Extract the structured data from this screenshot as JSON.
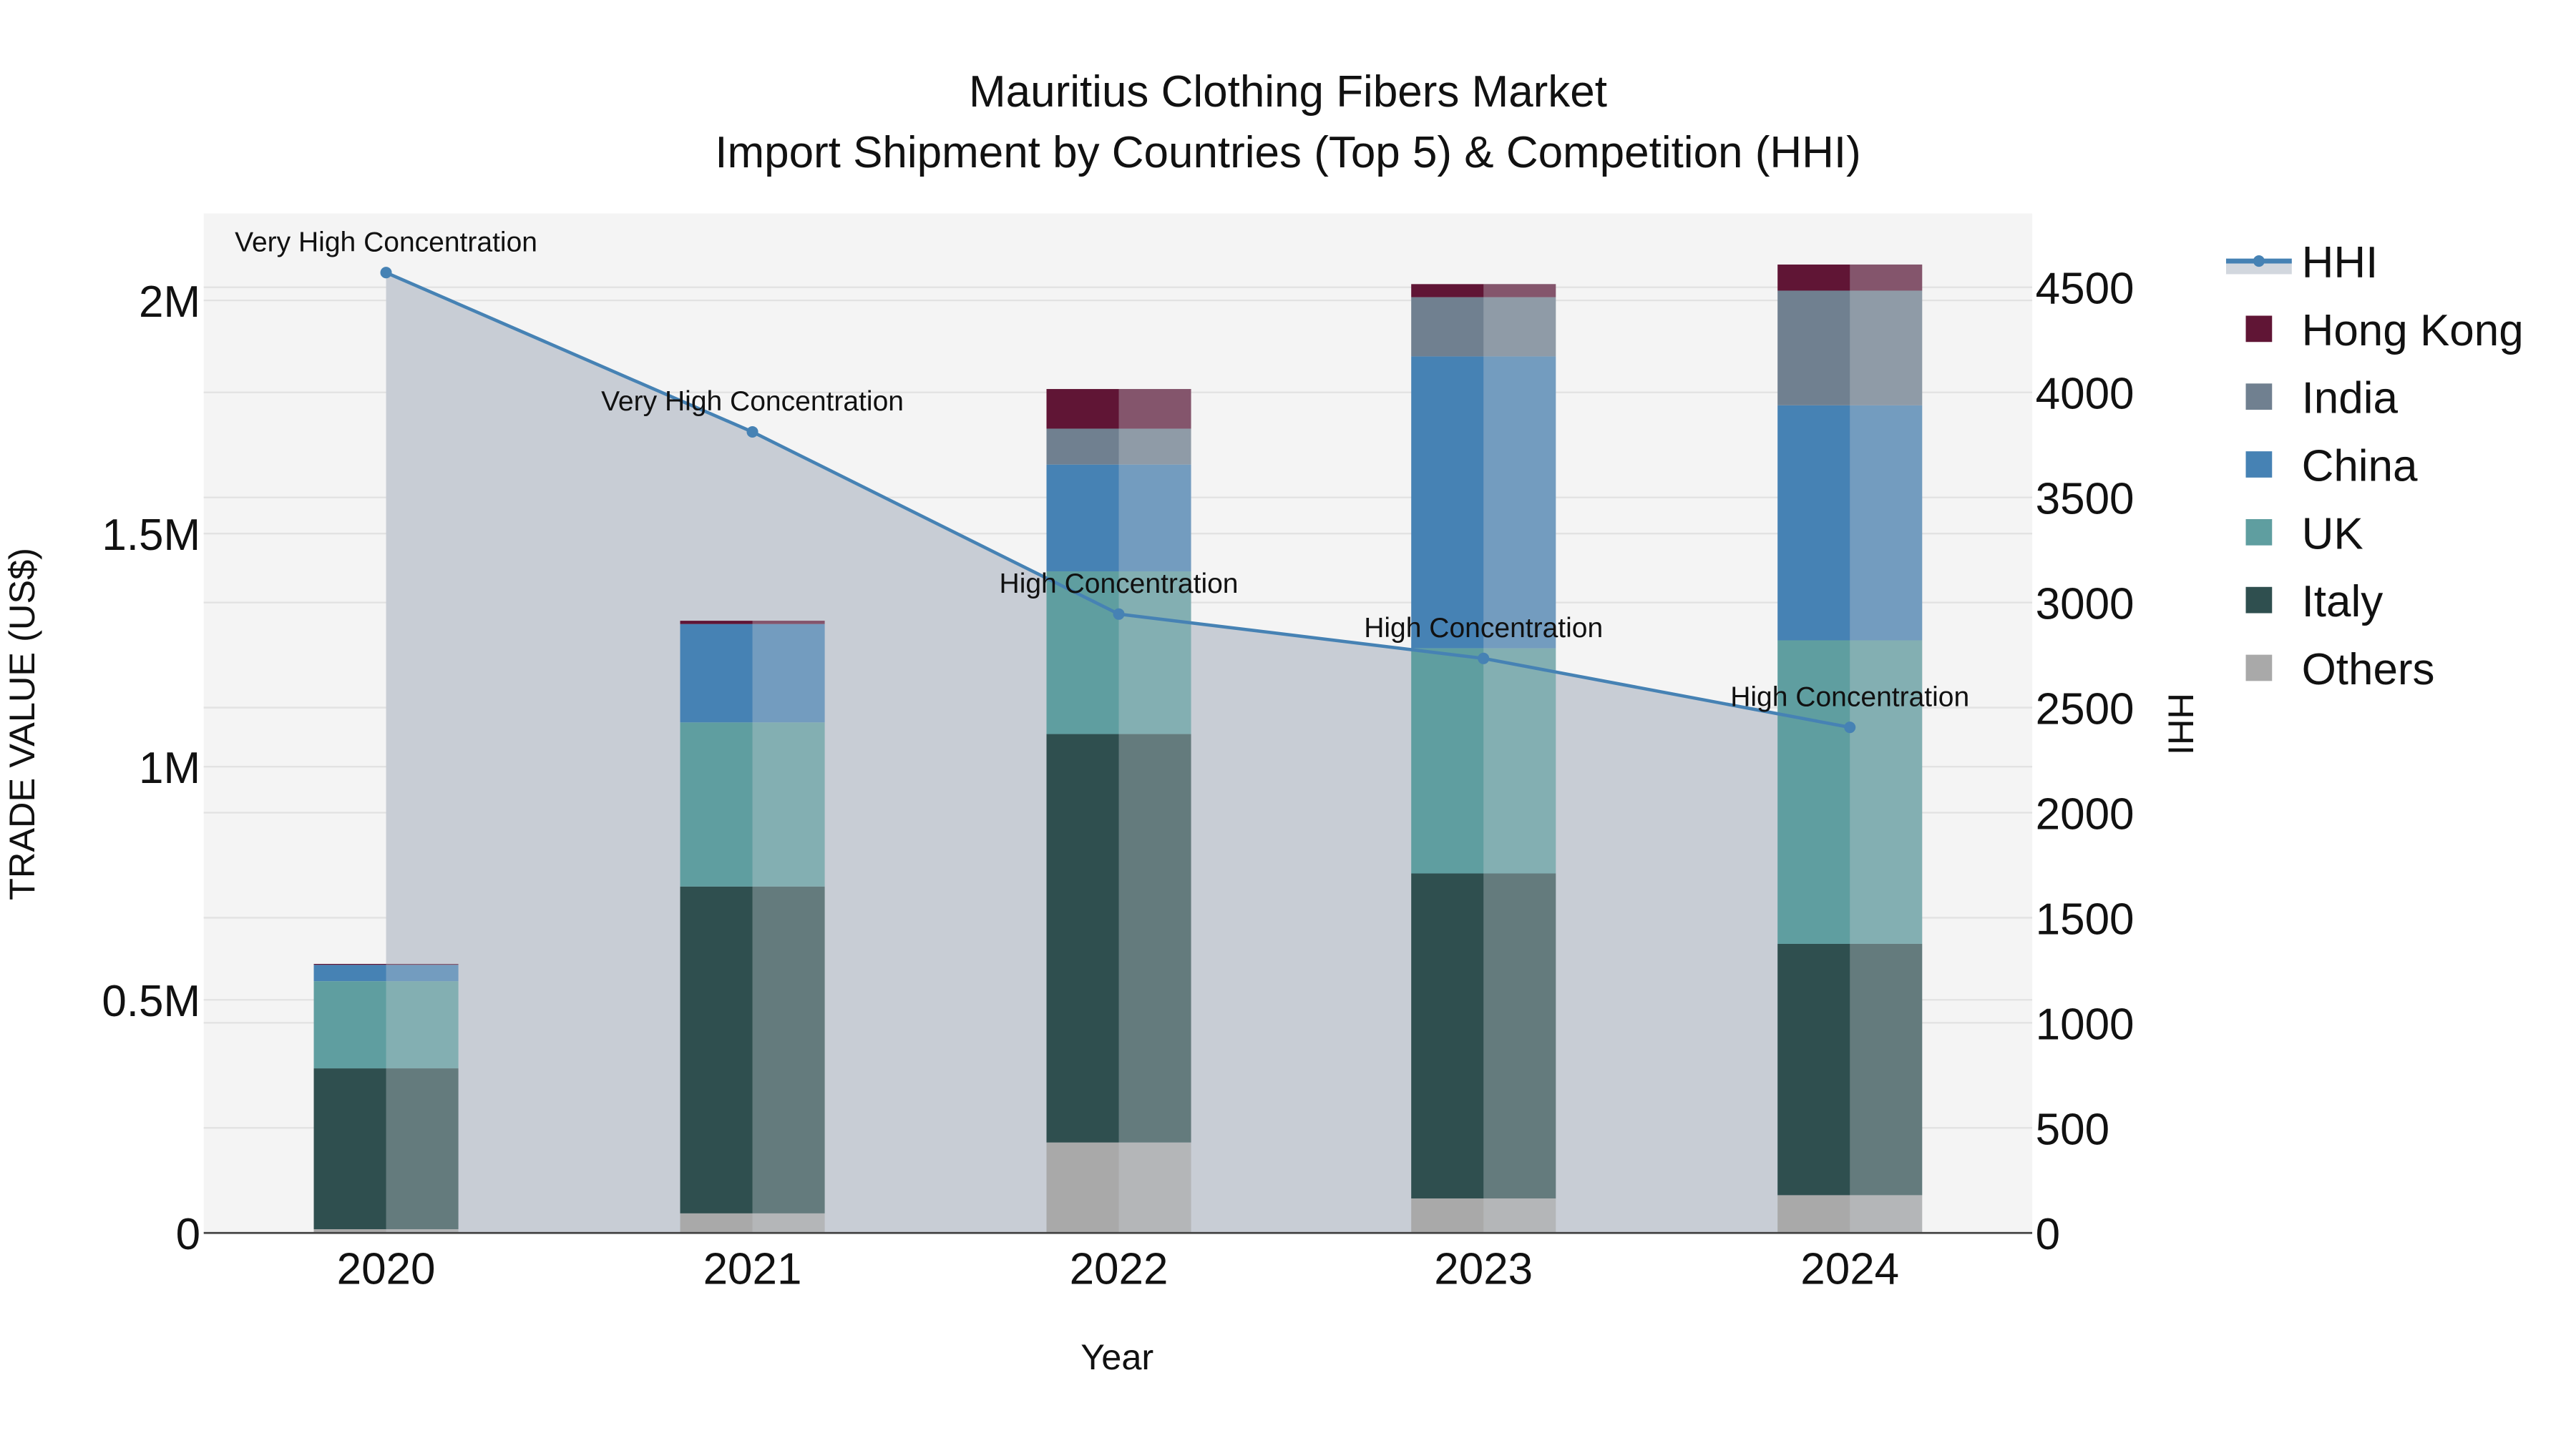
{
  "title": {
    "line1": "Mauritius Clothing Fibers Market",
    "line2": "Import Shipment by Countries (Top 5) & Competition (HHI)"
  },
  "axes": {
    "x_label": "Year",
    "y_left_label": "TRADE VALUE (US$)",
    "y_right_label": "HHI",
    "y_left_ticks": [
      "0",
      "0.5M",
      "1M",
      "1.5M",
      "2M"
    ],
    "y_right_ticks": [
      "0",
      "500",
      "1000",
      "1500",
      "2000",
      "2500",
      "3000",
      "3500",
      "4000",
      "4500"
    ]
  },
  "legend": [
    {
      "label": "HHI",
      "type": "line",
      "color": "#4682b4"
    },
    {
      "label": "Hong Kong",
      "type": "bar",
      "color": "#601535"
    },
    {
      "label": "India",
      "type": "bar",
      "color": "#708090"
    },
    {
      "label": "China",
      "type": "bar",
      "color": "#4682b4"
    },
    {
      "label": "UK",
      "type": "bar",
      "color": "#5f9ea0"
    },
    {
      "label": "Italy",
      "type": "bar",
      "color": "#2f4f4f"
    },
    {
      "label": "Others",
      "type": "bar",
      "color": "#a9a9a9"
    }
  ],
  "chart_data": {
    "type": "bar",
    "title": "Mauritius Clothing Fibers Market — Import Shipment by Countries (Top 5) & Competition (HHI)",
    "xlabel": "Year",
    "ylabel": "TRADE VALUE (US$)",
    "y2label": "HHI",
    "ylim": [
      0,
      2180000
    ],
    "y2lim": [
      0,
      4800
    ],
    "stacked": true,
    "categories": [
      "2020",
      "2021",
      "2022",
      "2023",
      "2024"
    ],
    "series": [
      {
        "name": "Others",
        "color": "#a9a9a9",
        "values": [
          8000,
          42000,
          194000,
          74000,
          81000
        ]
      },
      {
        "name": "Italy",
        "color": "#2f4f4f",
        "values": [
          345000,
          701000,
          876000,
          697000,
          539000
        ]
      },
      {
        "name": "UK",
        "color": "#5f9ea0",
        "values": [
          187000,
          352000,
          349000,
          483000,
          651000
        ]
      },
      {
        "name": "China",
        "color": "#4682b4",
        "values": [
          35000,
          211000,
          229000,
          626000,
          504000
        ]
      },
      {
        "name": "India",
        "color": "#708090",
        "values": [
          0,
          0,
          77000,
          127000,
          246000
        ]
      },
      {
        "name": "Hong Kong",
        "color": "#601535",
        "values": [
          2000,
          7000,
          85000,
          28000,
          56000
        ]
      }
    ],
    "line_series": {
      "name": "HHI",
      "axis": "right",
      "color": "#4682b4",
      "fill": "tozeroy",
      "values": [
        4570,
        3812,
        2945,
        2734,
        2406
      ],
      "annotations": [
        "Very High Concentration",
        "Very High Concentration",
        "High Concentration",
        "High Concentration",
        "High Concentration"
      ]
    },
    "grid": true,
    "legend_position": "right"
  }
}
